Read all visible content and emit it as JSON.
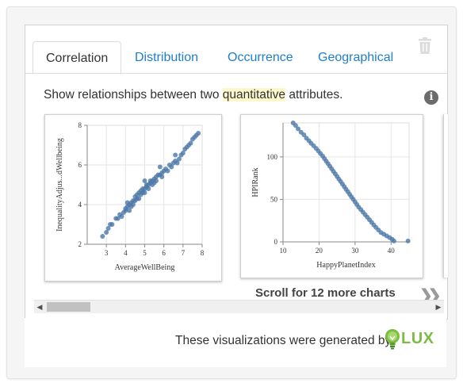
{
  "tabs": [
    {
      "label": "Correlation",
      "active": true
    },
    {
      "label": "Distribution",
      "active": false
    },
    {
      "label": "Occurrence",
      "active": false
    },
    {
      "label": "Geographical",
      "active": false
    }
  ],
  "description": {
    "prefix": "Show relationships between two ",
    "highlight": "quantitative",
    "suffix": " attributes."
  },
  "icons": {
    "trash": "trash-icon",
    "info": "info-icon",
    "info_glyph": "i"
  },
  "scroll": {
    "text": "Scroll for 12 more charts",
    "chevron": "❯❯"
  },
  "footer": {
    "text": "These visualizations were generated by",
    "logo": "LUX"
  },
  "colors": {
    "accent": "#1f7ec8",
    "points": "#4c78a8",
    "logo_green": "#7dbb42"
  },
  "chart_data": [
    {
      "type": "scatter",
      "xlabel": "AverageWellBeing",
      "ylabel": "InequalityAdjus...dWellbeing",
      "xlim": [
        2,
        8
      ],
      "ylim": [
        2,
        8
      ],
      "xticks": [
        3,
        4,
        5,
        6,
        7,
        8
      ],
      "yticks": [
        2,
        4,
        6,
        8
      ],
      "grid": true,
      "points": [
        [
          2.8,
          2.4
        ],
        [
          3.0,
          2.6
        ],
        [
          3.1,
          2.8
        ],
        [
          3.2,
          3.0
        ],
        [
          3.3,
          3.0
        ],
        [
          3.6,
          3.3
        ],
        [
          3.7,
          3.5
        ],
        [
          3.8,
          3.4
        ],
        [
          3.9,
          3.6
        ],
        [
          4.0,
          3.7
        ],
        [
          4.0,
          3.8
        ],
        [
          4.1,
          3.9
        ],
        [
          4.2,
          3.7
        ],
        [
          4.2,
          4.0
        ],
        [
          4.3,
          3.9
        ],
        [
          4.3,
          4.1
        ],
        [
          4.4,
          4.0
        ],
        [
          4.4,
          4.2
        ],
        [
          4.5,
          4.2
        ],
        [
          4.5,
          4.4
        ],
        [
          4.6,
          4.3
        ],
        [
          4.6,
          4.5
        ],
        [
          4.7,
          4.3
        ],
        [
          4.7,
          4.6
        ],
        [
          4.8,
          4.5
        ],
        [
          4.8,
          4.7
        ],
        [
          4.9,
          4.6
        ],
        [
          4.9,
          4.8
        ],
        [
          5.0,
          4.8
        ],
        [
          5.0,
          4.6
        ],
        [
          5.1,
          4.9
        ],
        [
          5.1,
          5.0
        ],
        [
          5.2,
          5.0
        ],
        [
          5.2,
          4.8
        ],
        [
          5.3,
          5.1
        ],
        [
          5.3,
          5.2
        ],
        [
          5.4,
          5.2
        ],
        [
          5.4,
          5.0
        ],
        [
          5.5,
          5.3
        ],
        [
          5.5,
          5.1
        ],
        [
          5.6,
          5.4
        ],
        [
          5.6,
          5.2
        ],
        [
          5.7,
          5.5
        ],
        [
          5.8,
          5.5
        ],
        [
          5.9,
          5.6
        ],
        [
          5.9,
          5.4
        ],
        [
          6.0,
          5.7
        ],
        [
          6.1,
          5.8
        ],
        [
          6.2,
          5.7
        ],
        [
          6.3,
          6.0
        ],
        [
          6.4,
          5.9
        ],
        [
          6.5,
          6.1
        ],
        [
          6.6,
          6.2
        ],
        [
          6.7,
          6.1
        ],
        [
          6.8,
          6.3
        ],
        [
          6.9,
          6.5
        ],
        [
          7.0,
          6.6
        ],
        [
          7.1,
          6.8
        ],
        [
          7.2,
          6.9
        ],
        [
          7.3,
          7.0
        ],
        [
          7.4,
          7.1
        ],
        [
          7.5,
          7.3
        ],
        [
          7.6,
          7.4
        ],
        [
          7.7,
          7.5
        ],
        [
          7.8,
          7.6
        ],
        [
          5.8,
          5.9
        ],
        [
          4.1,
          4.1
        ],
        [
          6.6,
          6.5
        ],
        [
          5.0,
          5.2
        ],
        [
          3.5,
          3.3
        ]
      ]
    },
    {
      "type": "scatter",
      "xlabel": "HappyPlanetIndex",
      "ylabel": "HPIRank",
      "xlim": [
        10,
        45
      ],
      "ylim": [
        0,
        140
      ],
      "xticks": [
        10,
        20,
        30,
        40
      ],
      "yticks": [
        0,
        50,
        100
      ],
      "grid": true,
      "points": [
        [
          12.8,
          140
        ],
        [
          13.5,
          137
        ],
        [
          14.2,
          133
        ],
        [
          15.0,
          129
        ],
        [
          15.8,
          126
        ],
        [
          16.5,
          122
        ],
        [
          17.2,
          119
        ],
        [
          17.8,
          116
        ],
        [
          18.5,
          113
        ],
        [
          19.2,
          110
        ],
        [
          19.8,
          107
        ],
        [
          20.4,
          104
        ],
        [
          21.0,
          101
        ],
        [
          21.5,
          98
        ],
        [
          22.0,
          95
        ],
        [
          22.5,
          92
        ],
        [
          23.0,
          89
        ],
        [
          23.5,
          86
        ],
        [
          24.0,
          83
        ],
        [
          24.5,
          80
        ],
        [
          25.0,
          77
        ],
        [
          25.5,
          74
        ],
        [
          26.0,
          71
        ],
        [
          26.5,
          68
        ],
        [
          27.0,
          65
        ],
        [
          27.5,
          62
        ],
        [
          28.0,
          59
        ],
        [
          28.5,
          56
        ],
        [
          29.0,
          53
        ],
        [
          29.5,
          50
        ],
        [
          30.0,
          47
        ],
        [
          30.5,
          44
        ],
        [
          31.0,
          41
        ],
        [
          31.6,
          38
        ],
        [
          32.2,
          35
        ],
        [
          32.8,
          32
        ],
        [
          33.4,
          29
        ],
        [
          34.0,
          26
        ],
        [
          34.6,
          23
        ],
        [
          35.2,
          20
        ],
        [
          35.8,
          17
        ],
        [
          36.5,
          14
        ],
        [
          37.2,
          11
        ],
        [
          38.0,
          9
        ],
        [
          38.8,
          7
        ],
        [
          39.6,
          5
        ],
        [
          40.3,
          3
        ],
        [
          40.8,
          1
        ],
        [
          44.7,
          1
        ]
      ]
    }
  ]
}
